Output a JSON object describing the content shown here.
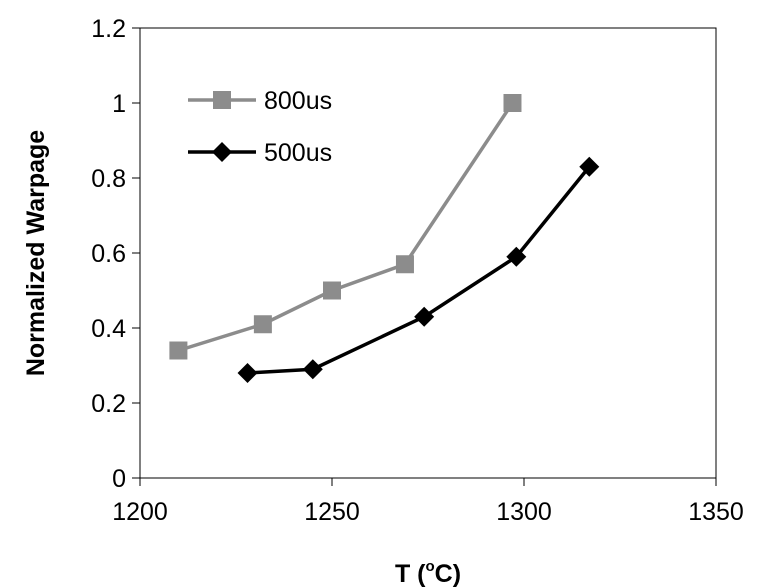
{
  "chart_data": {
    "type": "line",
    "xlabel": {
      "prefix": "T (",
      "superscript": "o",
      "suffix": "C)"
    },
    "ylabel": "Normalized Warpage",
    "xlim": [
      1200,
      1350
    ],
    "ylim": [
      0,
      1.2
    ],
    "x_ticks": [
      "1200",
      "1250",
      "1300",
      "1350"
    ],
    "y_ticks": [
      "0",
      "0.2",
      "0.4",
      "0.6",
      "0.8",
      "1",
      "1.2"
    ],
    "grid": false,
    "legend_position": "top-left",
    "series": [
      {
        "name": "800us",
        "marker": "square",
        "color": "#8c8c8c",
        "points": [
          {
            "x": 1210,
            "y": 0.34
          },
          {
            "x": 1232,
            "y": 0.41
          },
          {
            "x": 1250,
            "y": 0.5
          },
          {
            "x": 1269,
            "y": 0.57
          },
          {
            "x": 1297,
            "y": 1.0
          }
        ]
      },
      {
        "name": "500us",
        "marker": "diamond",
        "color": "#000000",
        "points": [
          {
            "x": 1228,
            "y": 0.28
          },
          {
            "x": 1245,
            "y": 0.29
          },
          {
            "x": 1274,
            "y": 0.43
          },
          {
            "x": 1298,
            "y": 0.59
          },
          {
            "x": 1317,
            "y": 0.83
          }
        ]
      }
    ]
  }
}
